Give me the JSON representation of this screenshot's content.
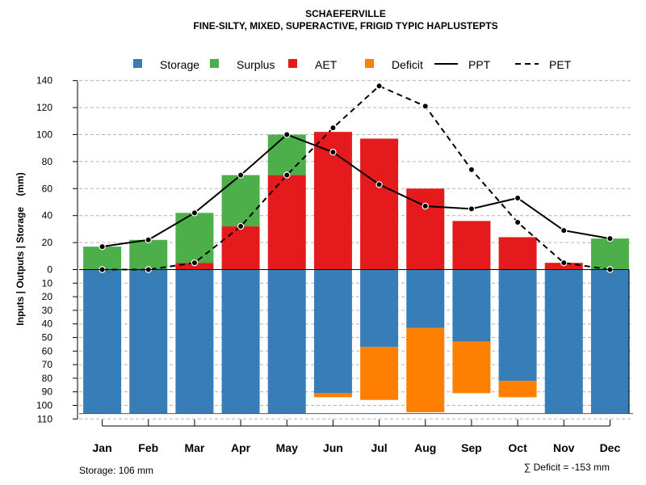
{
  "chart_data": {
    "type": "bar",
    "title": "SCHAEFERVILLE",
    "subtitle": "FINE-SILTY, MIXED, SUPERACTIVE, FRIGID TYPIC HAPLUSTEPTS",
    "ylabel": "Inputs | Outputs | Storage    (mm)",
    "ylim_top": [
      0,
      140
    ],
    "ylim_bottom": [
      0,
      110
    ],
    "yticks_top": [
      "0",
      "20",
      "40",
      "60",
      "80",
      "100",
      "120",
      "140"
    ],
    "yticks_bottom": [
      "10",
      "20",
      "30",
      "40",
      "50",
      "60",
      "70",
      "80",
      "90",
      "100",
      "110"
    ],
    "categories": [
      "Jan",
      "Feb",
      "Mar",
      "Apr",
      "May",
      "Jun",
      "Jul",
      "Aug",
      "Sep",
      "Oct",
      "Nov",
      "Dec"
    ],
    "series": [
      {
        "name": "AET",
        "values": [
          0,
          0,
          5,
          32,
          70,
          102,
          97,
          60,
          36,
          24,
          5,
          0
        ]
      },
      {
        "name": "Surplus",
        "values": [
          17,
          22,
          37,
          38,
          30,
          0,
          0,
          0,
          0,
          0,
          0,
          23
        ]
      },
      {
        "name": "Storage",
        "values": [
          106,
          106,
          106,
          106,
          106,
          91,
          57,
          43,
          53,
          82,
          106,
          106
        ]
      },
      {
        "name": "Deficit",
        "values": [
          0,
          0,
          0,
          0,
          0,
          3,
          39,
          62,
          38,
          12,
          0,
          0
        ]
      },
      {
        "name": "PPT",
        "values": [
          17,
          22,
          42,
          70,
          100,
          87,
          63,
          47,
          45,
          53,
          29,
          23
        ]
      },
      {
        "name": "PET",
        "values": [
          0,
          0,
          5,
          32,
          70,
          105,
          136,
          121,
          74,
          35,
          5,
          0
        ]
      }
    ],
    "legend": [
      {
        "label": "Storage",
        "kind": "box",
        "color": "#377EB8"
      },
      {
        "label": "Surplus",
        "kind": "box",
        "color": "#4DAF4A"
      },
      {
        "label": "AET",
        "kind": "box",
        "color": "#E41A1C"
      },
      {
        "label": "Deficit",
        "kind": "box",
        "color": "#FF7F00"
      },
      {
        "label": "PPT",
        "kind": "line",
        "dash": "solid",
        "color": "#000000"
      },
      {
        "label": "PET",
        "kind": "line",
        "dash": "dashed",
        "color": "#000000"
      }
    ],
    "footer_left": "Storage: 106 mm",
    "footer_right": "∑ Deficit = -153 mm"
  }
}
